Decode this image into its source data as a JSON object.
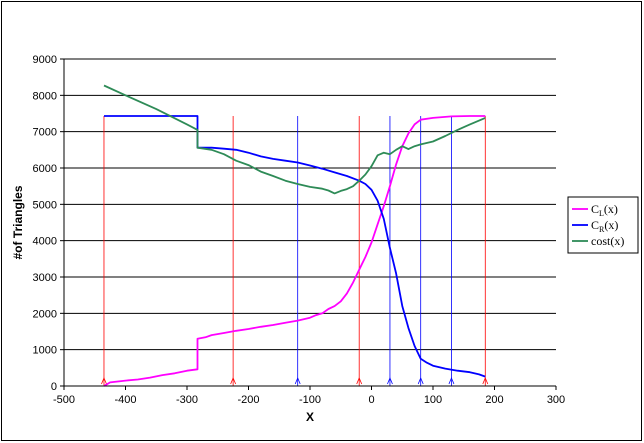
{
  "chart_data": {
    "type": "line",
    "xlabel": "X",
    "ylabel": "#of Triangles",
    "xlim": [
      -500,
      300
    ],
    "ylim": [
      0,
      9000
    ],
    "xticks": [
      -500,
      -400,
      -300,
      -200,
      -100,
      0,
      100,
      200,
      300
    ],
    "yticks": [
      0,
      1000,
      2000,
      3000,
      4000,
      5000,
      6000,
      7000,
      8000,
      9000
    ],
    "grid": "horizontal",
    "legend_position": "right",
    "series": [
      {
        "name": "C_L(x)",
        "legend_main": "C",
        "legend_sub": "L",
        "legend_tail": "(x)",
        "color": "#ff00ff",
        "points": [
          [
            -435,
            0
          ],
          [
            -425,
            100
          ],
          [
            -400,
            150
          ],
          [
            -380,
            180
          ],
          [
            -360,
            230
          ],
          [
            -340,
            300
          ],
          [
            -320,
            350
          ],
          [
            -300,
            420
          ],
          [
            -283,
            460
          ],
          [
            -283,
            1300
          ],
          [
            -270,
            1340
          ],
          [
            -260,
            1400
          ],
          [
            -240,
            1460
          ],
          [
            -220,
            1520
          ],
          [
            -200,
            1570
          ],
          [
            -180,
            1630
          ],
          [
            -160,
            1680
          ],
          [
            -140,
            1740
          ],
          [
            -120,
            1800
          ],
          [
            -100,
            1880
          ],
          [
            -90,
            1950
          ],
          [
            -80,
            2000
          ],
          [
            -70,
            2120
          ],
          [
            -60,
            2200
          ],
          [
            -50,
            2330
          ],
          [
            -40,
            2550
          ],
          [
            -30,
            2850
          ],
          [
            -20,
            3200
          ],
          [
            -10,
            3550
          ],
          [
            0,
            3950
          ],
          [
            10,
            4450
          ],
          [
            20,
            4950
          ],
          [
            30,
            5500
          ],
          [
            40,
            6100
          ],
          [
            50,
            6600
          ],
          [
            60,
            6950
          ],
          [
            70,
            7200
          ],
          [
            80,
            7330
          ],
          [
            100,
            7380
          ],
          [
            130,
            7420
          ],
          [
            160,
            7430
          ],
          [
            185,
            7430
          ]
        ]
      },
      {
        "name": "C_R(x)",
        "legend_main": "C",
        "legend_sub": "R",
        "legend_tail": "(x)",
        "color": "#0000ff",
        "points": [
          [
            -435,
            7430
          ],
          [
            -283,
            7430
          ],
          [
            -283,
            6560
          ],
          [
            -260,
            6560
          ],
          [
            -240,
            6530
          ],
          [
            -220,
            6500
          ],
          [
            -200,
            6420
          ],
          [
            -180,
            6320
          ],
          [
            -160,
            6250
          ],
          [
            -140,
            6200
          ],
          [
            -120,
            6150
          ],
          [
            -100,
            6070
          ],
          [
            -80,
            5980
          ],
          [
            -60,
            5880
          ],
          [
            -40,
            5780
          ],
          [
            -20,
            5650
          ],
          [
            -10,
            5560
          ],
          [
            0,
            5400
          ],
          [
            10,
            5100
          ],
          [
            20,
            4600
          ],
          [
            30,
            3800
          ],
          [
            40,
            3100
          ],
          [
            50,
            2200
          ],
          [
            60,
            1600
          ],
          [
            70,
            1100
          ],
          [
            80,
            750
          ],
          [
            90,
            640
          ],
          [
            100,
            560
          ],
          [
            120,
            480
          ],
          [
            140,
            420
          ],
          [
            160,
            380
          ],
          [
            175,
            320
          ],
          [
            185,
            260
          ]
        ]
      },
      {
        "name": "cost(x)",
        "legend_main": "cost(x)",
        "legend_sub": "",
        "legend_tail": "",
        "color": "#2e8b57",
        "points": [
          [
            -435,
            8270
          ],
          [
            -400,
            8000
          ],
          [
            -350,
            7620
          ],
          [
            -300,
            7200
          ],
          [
            -283,
            7050
          ],
          [
            -283,
            6560
          ],
          [
            -260,
            6500
          ],
          [
            -240,
            6380
          ],
          [
            -220,
            6200
          ],
          [
            -200,
            6080
          ],
          [
            -180,
            5900
          ],
          [
            -160,
            5780
          ],
          [
            -140,
            5650
          ],
          [
            -120,
            5560
          ],
          [
            -100,
            5480
          ],
          [
            -80,
            5430
          ],
          [
            -70,
            5380
          ],
          [
            -60,
            5300
          ],
          [
            -50,
            5370
          ],
          [
            -40,
            5420
          ],
          [
            -30,
            5500
          ],
          [
            -20,
            5650
          ],
          [
            -10,
            5820
          ],
          [
            0,
            6050
          ],
          [
            10,
            6350
          ],
          [
            20,
            6420
          ],
          [
            30,
            6380
          ],
          [
            40,
            6500
          ],
          [
            50,
            6600
          ],
          [
            60,
            6520
          ],
          [
            70,
            6600
          ],
          [
            80,
            6650
          ],
          [
            100,
            6730
          ],
          [
            120,
            6880
          ],
          [
            140,
            7050
          ],
          [
            160,
            7200
          ],
          [
            185,
            7380
          ]
        ]
      }
    ],
    "reference_lines": [
      {
        "x": -435,
        "color": "#ff0000"
      },
      {
        "x": -225,
        "color": "#ff0000"
      },
      {
        "x": -120,
        "color": "#0000ff"
      },
      {
        "x": -20,
        "color": "#ff0000"
      },
      {
        "x": 30,
        "color": "#0000ff"
      },
      {
        "x": 80,
        "color": "#0000ff"
      },
      {
        "x": 130,
        "color": "#0000ff"
      },
      {
        "x": 185,
        "color": "#ff0000"
      }
    ]
  }
}
